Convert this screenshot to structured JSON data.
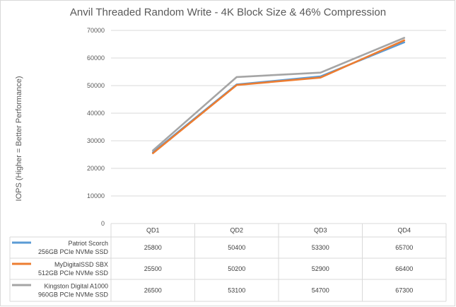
{
  "chart_data": {
    "type": "line",
    "title": "Anvil Threaded Random Write - 4K Block Size & 46% Compression",
    "ylabel": "IOPS (Higher = Better Performance)",
    "xlabel": "",
    "categories": [
      "QD1",
      "QD2",
      "QD3",
      "QD4"
    ],
    "ylim": [
      0,
      70000
    ],
    "yticks": [
      "0",
      "10000",
      "20000",
      "30000",
      "40000",
      "50000",
      "60000",
      "70000"
    ],
    "grid": true,
    "legend": "data-table-bottom",
    "series": [
      {
        "name_line1": "Patriot Scorch",
        "name_line2": "256GB PCIe NVMe SSD",
        "color": "#5b9bd5",
        "values": [
          25800,
          50400,
          53300,
          65700
        ],
        "labels": [
          "25800",
          "50400",
          "53300",
          "65700"
        ]
      },
      {
        "name_line1": "MyDigitalSSD SBX",
        "name_line2": "512GB PCIe NVMe SSD",
        "color": "#ed7d31",
        "values": [
          25500,
          50200,
          52900,
          66400
        ],
        "labels": [
          "25500",
          "50200",
          "52900",
          "66400"
        ]
      },
      {
        "name_line1": "Kingston Digital A1000",
        "name_line2": "960GB PCIe NVMe SSD",
        "color": "#a5a5a5",
        "values": [
          26500,
          53100,
          54700,
          67300
        ],
        "labels": [
          "26500",
          "53100",
          "54700",
          "67300"
        ]
      }
    ]
  }
}
